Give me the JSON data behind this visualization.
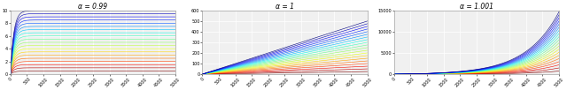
{
  "n_lines": 20,
  "x_max": 5000,
  "panel1": {
    "title": "α = 0.99",
    "ylim": [
      0,
      10
    ],
    "yticks": [
      0,
      2,
      4,
      6,
      8,
      10
    ],
    "xticks": [
      0,
      500,
      1000,
      1500,
      2000,
      2500,
      3000,
      3500,
      4000,
      4500,
      5000
    ],
    "alpha": 0.99,
    "c_min": 0.005,
    "c_max": 0.1
  },
  "panel2": {
    "title": "α = 1",
    "ylim": [
      0,
      600
    ],
    "yticks": [
      0,
      100,
      200,
      300,
      400,
      500,
      600
    ],
    "xticks": [
      0,
      500,
      1000,
      1500,
      2000,
      2500,
      3000,
      3500,
      4000,
      4500,
      5000
    ],
    "alpha": 1.0,
    "c_min": 0.005,
    "c_max": 0.1
  },
  "panel3": {
    "title": "α = 1.001",
    "ylim": [
      0,
      15000
    ],
    "yticks": [
      0,
      5000,
      10000,
      15000
    ],
    "xticks": [
      0,
      500,
      1000,
      1500,
      2000,
      2500,
      3000,
      3500,
      4000,
      4500,
      5000
    ],
    "alpha": 1.001,
    "c_min": 0.005,
    "c_max": 0.1
  },
  "background_color": "#f0f0f0",
  "grid_color": "#ffffff"
}
